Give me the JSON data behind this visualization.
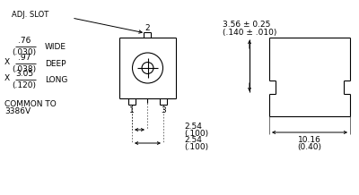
{
  "bg_color": "#ffffff",
  "line_color": "#000000",
  "text_color": "#000000",
  "figsize": [
    4.0,
    2.18
  ],
  "dpi": 100,
  "labels": {
    "adj_slot": "ADJ. SLOT",
    "wide_num": ".76",
    "wide_den": "(.030)",
    "wide_label": "WIDE",
    "deep_num": ".97",
    "deep_den": "(.038)",
    "deep_label": "DEEP",
    "long_num": "3.05",
    "long_den": "(.120)",
    "long_label": "LONG",
    "common1": "COMMON TO",
    "common2": "3386V",
    "x_deep": "X",
    "x_long": "X",
    "pin1": "1",
    "pin2": "2",
    "pin3": "3",
    "dim1_top": "2.54",
    "dim1_bot": "(.100)",
    "dim2_top": "2.54",
    "dim2_bot": "(.100)",
    "side_dim_top": "3.56 ± 0.25",
    "side_dim_bot": "(.140 ± .010)",
    "width_dim_top": "10.16",
    "width_dim_bot": "(0.40)"
  }
}
